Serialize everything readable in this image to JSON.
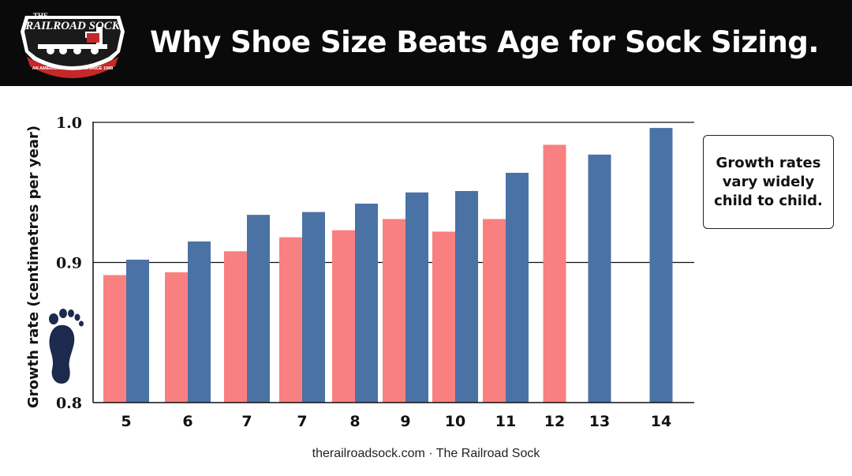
{
  "header": {
    "title": "Why Shoe Size Beats Age for Sock Sizing.",
    "logo": {
      "top_text": "THE",
      "main_text": "RAILROAD SOCK",
      "ribbon_text": "AN AMERICAN TRADITION SINCE 1988"
    }
  },
  "callout": {
    "lines": [
      "Growth rates",
      "vary widely",
      "child to child."
    ]
  },
  "footer": {
    "text": "therailroadsock.com · The Railroad Sock"
  },
  "icons": {
    "footprint": "footprint-icon"
  },
  "colors": {
    "series_a": "#f98080",
    "series_b": "#4a72a5",
    "header_bg": "#0a0a0a",
    "footprint": "#1c2a4e"
  },
  "chart_data": {
    "type": "bar",
    "categories": [
      "5",
      "6",
      "7",
      "7",
      "8",
      "9",
      "10",
      "11",
      "12",
      "13",
      "14"
    ],
    "series": [
      {
        "values": [
          0.891,
          0.893,
          0.908,
          0.918,
          0.923,
          0.931,
          0.922,
          0.931,
          0.984,
          null,
          null
        ]
      },
      {
        "values": [
          0.902,
          0.915,
          0.934,
          0.936,
          0.942,
          0.95,
          0.951,
          0.964,
          null,
          0.977,
          0.996
        ]
      }
    ],
    "ylabel": "Growth rate (centimetres per year)",
    "xlabel": "",
    "ylim": [
      0.8,
      1.0
    ],
    "yticks": [
      "0.8",
      "0.9",
      "1.0"
    ],
    "grid": true
  }
}
